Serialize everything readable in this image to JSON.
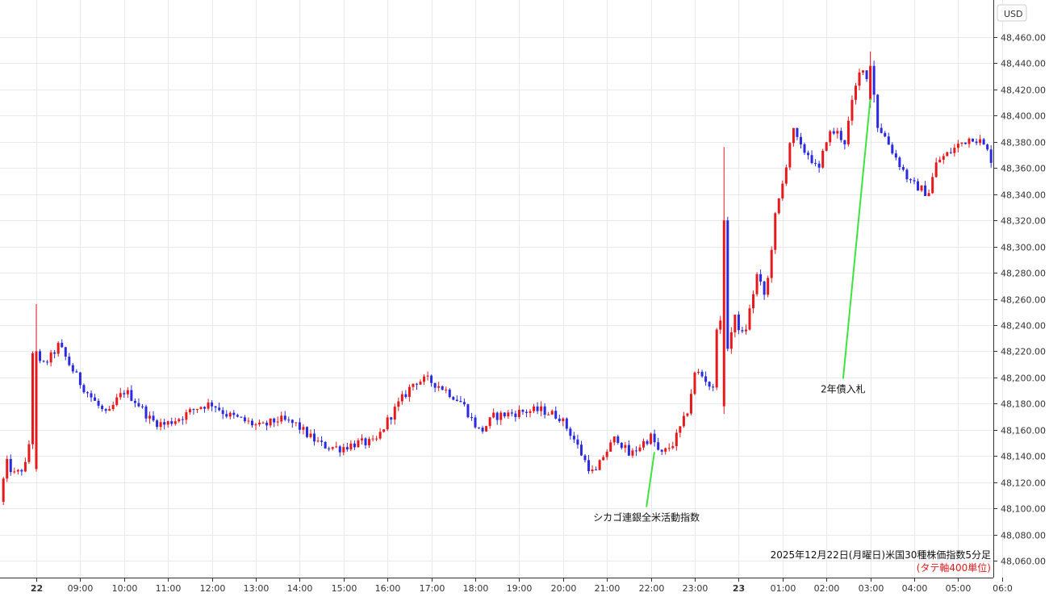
{
  "chart_data": {
    "type": "candlestick",
    "currency": "USD",
    "y_ticks": [
      "48,060.00",
      "48,080.00",
      "48,100.00",
      "48,120.00",
      "48,140.00",
      "48,160.00",
      "48,180.00",
      "48,200.00",
      "48,220.00",
      "48,240.00",
      "48,260.00",
      "48,280.00",
      "48,300.00",
      "48,320.00",
      "48,340.00",
      "48,360.00",
      "48,380.00",
      "48,400.00",
      "48,420.00",
      "48,440.00",
      "48,460.00"
    ],
    "y_tick_values": [
      48060,
      48080,
      48100,
      48120,
      48140,
      48160,
      48180,
      48200,
      48220,
      48240,
      48260,
      48280,
      48300,
      48320,
      48340,
      48360,
      48380,
      48400,
      48420,
      48440,
      48460
    ],
    "ylim": [
      48052,
      48472
    ],
    "x_ticks": [
      {
        "label": "22",
        "bold": true,
        "t": -5.0
      },
      {
        "label": "09:00",
        "t": -4.0
      },
      {
        "label": "10:00",
        "t": -3.0
      },
      {
        "label": "11:00",
        "t": -2.0
      },
      {
        "label": "12:00",
        "t": -1.0
      },
      {
        "label": "13:00",
        "t": 0.0
      },
      {
        "label": "14:00",
        "t": 1.0
      },
      {
        "label": "15:00",
        "t": 2.0
      },
      {
        "label": "16:00",
        "t": 3.0
      },
      {
        "label": "17:00",
        "t": 4.0
      },
      {
        "label": "18:00",
        "t": 5.0
      },
      {
        "label": "19:00",
        "t": 6.0
      },
      {
        "label": "20:00",
        "t": 7.0
      },
      {
        "label": "21:00",
        "t": 8.0
      },
      {
        "label": "22:00",
        "t": 9.0
      },
      {
        "label": "23:00",
        "t": 10.0
      },
      {
        "label": "23",
        "bold": true,
        "t": 11.0
      },
      {
        "label": "01:00",
        "t": 12.0
      },
      {
        "label": "02:00",
        "t": 13.0
      },
      {
        "label": "03:00",
        "t": 14.0
      },
      {
        "label": "04:00",
        "t": 15.0
      },
      {
        "label": "05:00",
        "t": 16.0
      },
      {
        "label": "06:0",
        "t": 17.0
      }
    ],
    "xlim": [
      -5.75,
      17.0
    ],
    "colors": {
      "up": "#e8191c",
      "down": "#2a2ae0",
      "annotation_line": "#3ee43e",
      "grid": "#e6e9ee",
      "axis": "#333333"
    },
    "keypoints": [
      [
        -5.75,
        48105
      ],
      [
        -5.6,
        48135
      ],
      [
        -5.4,
        48125
      ],
      [
        -5.1,
        48135
      ],
      [
        -5.0,
        48220
      ],
      [
        -4.8,
        48208
      ],
      [
        -4.6,
        48215
      ],
      [
        -4.4,
        48225
      ],
      [
        -4.2,
        48212
      ],
      [
        -3.9,
        48195
      ],
      [
        -3.6,
        48182
      ],
      [
        -3.3,
        48170
      ],
      [
        -3.1,
        48182
      ],
      [
        -2.9,
        48190
      ],
      [
        -2.6,
        48180
      ],
      [
        -2.3,
        48167
      ],
      [
        -2.0,
        48164
      ],
      [
        -1.6,
        48170
      ],
      [
        -1.2,
        48178
      ],
      [
        -0.9,
        48180
      ],
      [
        -0.6,
        48172
      ],
      [
        -0.2,
        48167
      ],
      [
        0.2,
        48162
      ],
      [
        0.6,
        48168
      ],
      [
        1.0,
        48164
      ],
      [
        1.3,
        48155
      ],
      [
        1.6,
        48148
      ],
      [
        2.0,
        48146
      ],
      [
        2.4,
        48150
      ],
      [
        2.8,
        48150
      ],
      [
        3.1,
        48168
      ],
      [
        3.4,
        48183
      ],
      [
        3.7,
        48197
      ],
      [
        4.0,
        48198
      ],
      [
        4.3,
        48193
      ],
      [
        4.5,
        48188
      ],
      [
        4.8,
        48180
      ],
      [
        5.0,
        48168
      ],
      [
        5.2,
        48158
      ],
      [
        5.5,
        48170
      ],
      [
        5.8,
        48172
      ],
      [
        6.2,
        48174
      ],
      [
        6.6,
        48175
      ],
      [
        7.0,
        48170
      ],
      [
        7.3,
        48155
      ],
      [
        7.6,
        48135
      ],
      [
        7.8,
        48125
      ],
      [
        8.0,
        48140
      ],
      [
        8.3,
        48155
      ],
      [
        8.6,
        48140
      ],
      [
        8.9,
        48150
      ],
      [
        9.1,
        48155
      ],
      [
        9.3,
        48140
      ],
      [
        9.6,
        48150
      ],
      [
        9.9,
        48172
      ],
      [
        10.1,
        48205
      ],
      [
        10.3,
        48200
      ],
      [
        10.5,
        48190
      ],
      [
        10.6,
        48250
      ],
      [
        10.8,
        48220
      ],
      [
        11.0,
        48245
      ],
      [
        11.2,
        48230
      ],
      [
        11.5,
        48278
      ],
      [
        11.7,
        48260
      ],
      [
        11.9,
        48320
      ],
      [
        12.1,
        48350
      ],
      [
        12.3,
        48390
      ],
      [
        12.5,
        48375
      ],
      [
        12.7,
        48370
      ],
      [
        12.9,
        48356
      ],
      [
        13.1,
        48385
      ],
      [
        13.3,
        48388
      ],
      [
        13.5,
        48380
      ],
      [
        13.7,
        48415
      ],
      [
        13.9,
        48440
      ],
      [
        14.05,
        48422
      ],
      [
        14.2,
        48395
      ],
      [
        14.4,
        48385
      ],
      [
        14.6,
        48372
      ],
      [
        14.8,
        48360
      ],
      [
        15.0,
        48348
      ],
      [
        15.2,
        48345
      ],
      [
        15.4,
        48340
      ],
      [
        15.6,
        48365
      ],
      [
        15.9,
        48372
      ],
      [
        16.1,
        48378
      ],
      [
        16.4,
        48384
      ],
      [
        16.6,
        48380
      ],
      [
        16.8,
        48370
      ],
      [
        17.0,
        48350
      ]
    ],
    "pinned_candles": [
      {
        "t": -5.0,
        "o": 48130,
        "c": 48220,
        "h": 48256,
        "l": 48128
      },
      {
        "t": 10.7,
        "o": 48178,
        "c": 48320,
        "h": 48376,
        "l": 48172
      },
      {
        "t": 14.0,
        "o": 48412,
        "c": 48438,
        "h": 48449,
        "l": 48406
      },
      {
        "t": 14.08,
        "o": 48438,
        "c": 48416,
        "h": 48442,
        "l": 48410
      }
    ],
    "annotations": [
      {
        "text": "シカゴ連銀全米活動指数",
        "x_at_point": 9.08,
        "y_at_point": 48143,
        "x_at_text": 8.9,
        "y_at_text": 48101
      },
      {
        "text": "2年債入札",
        "x_at_point": 14.0,
        "y_at_point": 48413,
        "x_at_text": 13.38,
        "y_at_text": 48199
      }
    ],
    "caption_line1": "2025年12月22日(月曜日)米国30種株価指数5分足",
    "caption_line2": "(タテ軸400単位)"
  }
}
